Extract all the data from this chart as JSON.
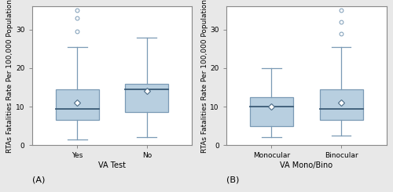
{
  "panel_A": {
    "xlabel": "VA Test",
    "ylabel": "RTAs Fatalities Rate Per 100,000 Population",
    "label_bottom": "(A)",
    "categories": [
      "Yes",
      "No"
    ],
    "boxes": [
      {
        "q1": 6.5,
        "median": 9.5,
        "q3": 14.5,
        "whisker_low": 1.5,
        "whisker_high": 25.5,
        "mean": 11.0,
        "outliers": [
          29.5,
          33.0,
          35.0
        ]
      },
      {
        "q1": 8.5,
        "median": 14.5,
        "q3": 16.0,
        "whisker_low": 2.0,
        "whisker_high": 28.0,
        "mean": 14.0,
        "outliers": []
      }
    ],
    "ylim": [
      0,
      36
    ],
    "yticks": [
      0,
      10,
      20,
      30
    ]
  },
  "panel_B": {
    "xlabel": "VA Mono/Bino",
    "ylabel": "RTAs Fatalities Rate Per 100,000 Population",
    "label_bottom": "(B)",
    "categories": [
      "Monocular",
      "Binocular"
    ],
    "boxes": [
      {
        "q1": 5.0,
        "median": 10.0,
        "q3": 12.5,
        "whisker_low": 2.0,
        "whisker_high": 20.0,
        "mean": 10.0,
        "outliers": []
      },
      {
        "q1": 6.5,
        "median": 9.5,
        "q3": 14.5,
        "whisker_low": 2.5,
        "whisker_high": 25.5,
        "mean": 11.0,
        "outliers": [
          29.0,
          32.0,
          35.0
        ]
      }
    ],
    "ylim": [
      0,
      36
    ],
    "yticks": [
      0,
      10,
      20,
      30
    ]
  },
  "box_color": "#b8cfe0",
  "box_edge_color": "#7a9ab5",
  "whisker_color": "#7a9ab5",
  "median_color": "#3a5a75",
  "mean_marker": "D",
  "mean_marker_color": "white",
  "mean_marker_edge_color": "#4a6a85",
  "outlier_marker": "o",
  "outlier_color": "white",
  "outlier_edge_color": "#7a9ab5",
  "fig_bg_color": "#e8e8e8",
  "plot_bg_color": "white",
  "spine_color": "#888888",
  "tick_label_fontsize": 6.5,
  "axis_label_fontsize": 6.5,
  "xlabel_fontsize": 7,
  "panel_label_fontsize": 8
}
